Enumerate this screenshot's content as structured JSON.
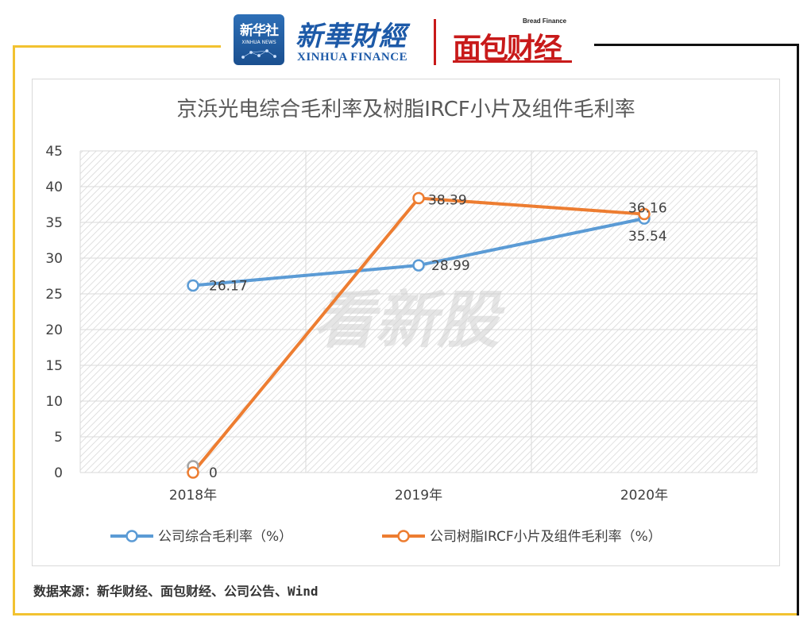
{
  "header": {
    "xinhua_news_logo_text": "新华社",
    "xinhua_news_logo_sub": "XINHUA NEWS",
    "xinhua_finance_cn": "新華財經",
    "xinhua_finance_en": "XINHUA FINANCE",
    "bread_finance_en": "Bread Finance",
    "bread_finance_cn": "面包财经"
  },
  "watermark": "看新股",
  "chart_data": {
    "type": "line",
    "title": "京浜光电综合毛利率及树脂IRCF小片及组件毛利率",
    "categories": [
      "2018年",
      "2019年",
      "2020年"
    ],
    "ylim": [
      0,
      45
    ],
    "yticks": [
      "0",
      "5",
      "10",
      "15",
      "20",
      "25",
      "30",
      "35",
      "40",
      "45"
    ],
    "xlabel": "",
    "ylabel": "",
    "series": [
      {
        "name": "公司综合毛利率（%）",
        "values": [
          26.17,
          28.99,
          35.54
        ],
        "labels": [
          "26.17",
          "28.99",
          "35.54"
        ],
        "color": "#5b9bd5"
      },
      {
        "name": "公司树脂IRCF小片及组件毛利率（%）",
        "values": [
          0,
          38.39,
          36.16
        ],
        "labels": [
          "0",
          "38.39",
          "36.16"
        ],
        "color": "#ed7d31"
      }
    ],
    "legend": "bottom"
  },
  "source_text": "数据来源：新华财经、面包财经、公司公告、Wind"
}
